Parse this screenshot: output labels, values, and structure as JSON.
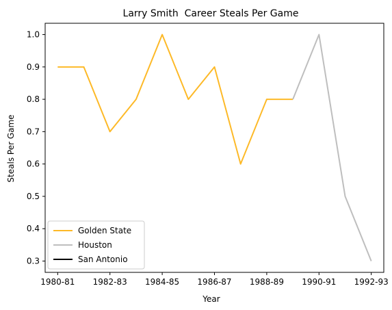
{
  "chart_data": {
    "type": "line",
    "title": "Larry Smith  Career Steals Per Game",
    "xlabel": "Year",
    "ylabel": "Steals Per Game",
    "x": [
      "1980-81",
      "1981-82",
      "1982-83",
      "1983-84",
      "1984-85",
      "1985-86",
      "1986-87",
      "1987-88",
      "1988-89",
      "1989-90",
      "1990-91",
      "1991-92",
      "1992-93"
    ],
    "xtick_labels": [
      "1980-81",
      "1982-83",
      "1984-85",
      "1986-87",
      "1988-89",
      "1990-91",
      "1992-93"
    ],
    "yticks": [
      "0.3",
      "0.4",
      "0.5",
      "0.6",
      "0.7",
      "0.8",
      "0.9",
      "1.0"
    ],
    "ylim": [
      0.265,
      1.035
    ],
    "grid": false,
    "legend_position": "lower-left",
    "series": [
      {
        "name": "Golden State",
        "color": "#FDB927",
        "x": [
          "1980-81",
          "1981-82",
          "1982-83",
          "1983-84",
          "1984-85",
          "1985-86",
          "1986-87",
          "1987-88",
          "1988-89",
          "1989-90"
        ],
        "values": [
          0.9,
          0.9,
          0.7,
          0.8,
          1.0,
          0.8,
          0.9,
          0.6,
          0.8,
          0.8
        ]
      },
      {
        "name": "Houston",
        "color": "#BEBEBE",
        "x": [
          "1989-90",
          "1990-91",
          "1991-92",
          "1992-93"
        ],
        "values": [
          0.8,
          1.0,
          0.5,
          0.3
        ]
      },
      {
        "name": "San Antonio",
        "color": "#000000",
        "x": [],
        "values": []
      }
    ]
  }
}
